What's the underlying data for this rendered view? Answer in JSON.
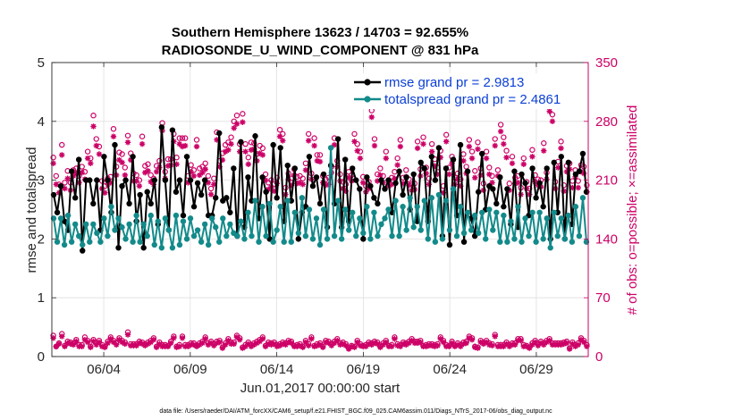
{
  "chart_data": {
    "type": "line",
    "title_line1": "Southern Hemisphere 13623 / 14703 = 92.655%",
    "title_line2": "RADIOSONDE_U_WIND_COMPONENT @ 831 hPa",
    "xlabel": "Jun.01,2017 00:00:00 start",
    "ylabel_left": "rmse and totalspread",
    "ylabel_right": "# of obs: o=possible; ×=assimilated",
    "footnote": "data file: /Users/raeder/DAI/ATM_forcXX/CAM6_setup/f.e21.FHIST_BGC.f09_025.CAM6assim.011/Diags_NTrS_2017-06/obs_diag_output.nc",
    "xlim": [
      1,
      32
    ],
    "ylim_left": [
      0,
      5
    ],
    "ylim_right": [
      0,
      350
    ],
    "x_tick_values": [
      4,
      9,
      14,
      19,
      24,
      29
    ],
    "x_tick_labels": [
      "06/04",
      "06/09",
      "06/14",
      "06/19",
      "06/24",
      "06/29"
    ],
    "y_left_ticks": [
      "0",
      "1",
      "2",
      "3",
      "4",
      "5"
    ],
    "y_right_ticks": [
      "0",
      "70",
      "140",
      "210",
      "280",
      "350"
    ],
    "colors": {
      "rmse": "#000000",
      "spread": "#138a8a",
      "obs": "#cc0066",
      "legend_text": "#0b3fd6"
    },
    "series": [
      {
        "name": "rmse grand pr = 2.9813",
        "key": "rmse",
        "values": [
          2.75,
          2.45,
          2.9,
          2.3,
          2.15,
          3.15,
          2.7,
          3.35,
          1.8,
          3.0,
          3.0,
          2.6,
          3.0,
          2.15,
          3.4,
          3.0,
          2.45,
          3.6,
          1.85,
          2.9,
          3.0,
          2.6,
          3.4,
          2.3,
          2.75,
          1.85,
          2.8,
          2.6,
          3.0,
          2.25,
          3.9,
          3.0,
          2.15,
          3.85,
          2.8,
          3.0,
          2.4,
          3.4,
          3.0,
          2.55,
          2.95,
          2.75,
          3.0,
          2.4,
          2.4,
          2.7,
          3.8,
          2.65,
          2.7,
          2.45,
          3.2,
          2.05,
          3.65,
          2.2,
          3.05,
          2.65,
          3.75,
          2.35,
          3.05,
          2.8,
          2.0,
          3.6,
          2.7,
          3.55,
          2.3,
          3.25,
          2.65,
          3.2,
          2.0,
          2.45,
          2.55,
          3.4,
          2.9,
          3.05,
          2.6,
          3.1,
          2.2,
          3.25,
          2.6,
          3.7,
          2.2,
          3.35,
          2.3,
          3.2,
          3.0,
          2.85,
          2.0,
          3.05,
          2.9,
          2.7,
          2.6,
          3.0,
          2.85,
          3.0,
          2.45,
          2.95,
          3.15,
          2.75,
          3.05,
          2.5,
          3.1,
          2.3,
          3.3,
          3.2,
          2.3,
          3.4,
          3.0,
          3.55,
          2.05,
          3.2,
          1.9,
          3.35,
          2.4,
          3.6,
          1.95,
          3.15,
          2.35,
          2.05,
          2.8,
          3.45,
          2.5,
          2.9,
          2.85,
          2.6,
          3.05,
          2.55,
          2.85,
          2.25,
          3.15,
          2.2,
          3.1,
          2.95,
          2.4,
          3.2,
          2.7,
          2.95,
          2.55,
          3.2,
          2.0,
          3.3,
          2.45,
          3.4,
          2.0,
          3.3,
          2.25,
          3.1,
          3.15,
          3.45,
          2.8
        ]
      },
      {
        "name": "totalspread grand pr = 2.4861",
        "key": "spread",
        "values": [
          2.35,
          1.95,
          2.35,
          1.9,
          2.4,
          1.95,
          2.25,
          2.05,
          1.9,
          2.25,
          1.95,
          2.25,
          2.1,
          1.95,
          2.35,
          2.05,
          2.55,
          2.15,
          2.35,
          2.2,
          2.0,
          2.25,
          1.95,
          2.4,
          1.95,
          2.25,
          2.05,
          2.4,
          1.9,
          2.3,
          1.85,
          2.35,
          2.15,
          1.85,
          2.4,
          1.9,
          2.3,
          2.0,
          2.35,
          2.05,
          2.15,
          1.95,
          2.25,
          1.9,
          2.35,
          2.2,
          1.95,
          2.35,
          2.05,
          2.25,
          2.1,
          2.05,
          2.3,
          2.0,
          2.45,
          2.05,
          2.65,
          1.95,
          2.55,
          2.05,
          2.6,
          1.95,
          2.15,
          2.55,
          1.95,
          2.65,
          1.95,
          2.45,
          2.1,
          2.7,
          2.05,
          2.5,
          2.0,
          2.35,
          1.9,
          2.5,
          2.0,
          3.55,
          2.05,
          2.65,
          2.0,
          2.5,
          2.15,
          2.45,
          2.05,
          2.35,
          2.1,
          2.55,
          2.0,
          2.45,
          2.05,
          2.25,
          2.35,
          2.5,
          2.05,
          2.65,
          2.05,
          2.55,
          2.15,
          2.7,
          2.2,
          2.55,
          2.15,
          2.65,
          2.0,
          2.7,
          1.95,
          2.75,
          2.0,
          2.65,
          2.15,
          2.85,
          2.05,
          2.55,
          2.1,
          2.45,
          2.15,
          2.4,
          2.1,
          2.45,
          2.0,
          2.5,
          2.15,
          2.45,
          1.95,
          2.4,
          1.95,
          2.3,
          2.0,
          2.55,
          1.95,
          2.35,
          2.05,
          2.45,
          1.95,
          2.45,
          2.0,
          2.35,
          1.85,
          2.45,
          2.05,
          2.35,
          2.0,
          2.4,
          1.95,
          2.55,
          2.05,
          2.7,
          1.95
        ]
      }
    ],
    "obs_possible_hi": [
      237,
      215,
      205,
      252,
      207,
      221,
      207,
      222,
      224,
      215,
      226,
      220,
      244,
      236,
      287,
      259,
      250,
      209,
      203,
      212,
      214,
      271,
      226,
      243,
      241,
      225,
      263,
      242,
      218,
      216,
      210,
      262,
      227,
      229,
      216,
      212,
      227,
      233,
      278,
      220,
      235,
      235,
      265,
      237,
      260,
      260,
      260,
      215,
      228,
      222,
      258,
      224,
      226,
      230,
      215,
      200,
      212,
      267,
      233,
      242,
      252,
      255,
      261,
      280,
      287,
      253,
      289,
      253,
      237,
      255,
      254,
      241,
      251,
      248,
      217,
      207,
      210,
      205,
      213,
      270,
      265,
      201,
      218,
      212,
      223,
      214,
      215,
      212,
      230,
      265,
      218,
      260,
      240,
      240,
      215,
      211,
      213,
      226,
      260,
      233,
      217,
      208,
      205,
      220,
      216,
      265,
      253,
      244,
      214,
      203,
      208,
      293,
      259,
      217,
      224,
      215,
      244,
      210,
      213,
      220,
      236,
      258,
      213,
      222,
      211,
      205,
      206,
      256,
      223,
      261,
      225,
      212,
      253,
      235,
      225,
      245,
      203,
      264,
      225,
      238,
      213,
      218,
      211,
      241,
      226,
      258,
      244,
      221,
      255,
      224,
      206,
      244,
      225,
      215,
      259,
      222,
      276,
      261,
      245,
      206,
      238,
      213,
      215,
      201,
      236,
      208,
      200,
      246,
      216,
      211,
      210,
      254,
      219,
      300,
      288,
      208,
      232,
      256,
      204,
      227,
      230,
      209,
      222,
      209,
      228,
      226,
      204
    ],
    "obs_assim_hi": [
      230,
      205,
      195,
      240,
      200,
      212,
      198,
      215,
      218,
      207,
      219,
      211,
      236,
      230,
      274,
      251,
      241,
      200,
      195,
      205,
      207,
      262,
      216,
      234,
      231,
      216,
      255,
      234,
      209,
      209,
      203,
      253,
      219,
      221,
      208,
      205,
      220,
      225,
      269,
      212,
      227,
      228,
      256,
      229,
      253,
      250,
      251,
      207,
      220,
      215,
      250,
      216,
      219,
      223,
      207,
      193,
      205,
      258,
      226,
      234,
      244,
      246,
      253,
      272,
      277,
      244,
      279,
      244,
      229,
      246,
      247,
      233,
      242,
      240,
      210,
      199,
      202,
      197,
      206,
      262,
      257,
      193,
      211,
      204,
      216,
      206,
      207,
      205,
      222,
      257,
      211,
      251,
      233,
      232,
      207,
      204,
      205,
      219,
      252,
      226,
      209,
      200,
      197,
      213,
      209,
      256,
      245,
      236,
      207,
      196,
      200,
      285,
      251,
      209,
      216,
      207,
      236,
      203,
      205,
      212,
      228,
      250,
      206,
      214,
      204,
      198,
      199,
      248,
      215,
      253,
      218,
      205,
      244,
      227,
      217,
      237,
      195,
      256,
      217,
      230,
      205,
      211,
      203,
      233,
      218,
      250,
      236,
      213,
      247,
      216,
      198,
      236,
      217,
      207,
      251,
      215,
      268,
      253,
      237,
      198,
      230,
      206,
      207,
      193,
      229,
      200,
      193,
      238,
      208,
      204,
      202,
      245,
      211,
      292,
      280,
      200,
      225,
      248,
      197,
      220,
      223,
      201,
      214,
      201,
      220,
      218,
      196
    ],
    "obs_possible_lo": [
      25,
      12,
      16,
      27,
      13,
      18,
      17,
      16,
      20,
      14,
      14,
      23,
      19,
      12,
      20,
      16,
      19,
      14,
      12,
      18,
      23,
      19,
      16,
      22,
      19,
      17,
      29,
      15,
      15,
      15,
      18,
      17,
      15,
      17,
      19,
      22,
      12,
      17,
      14,
      14,
      13,
      18,
      24,
      12,
      14,
      24,
      14,
      14,
      16,
      16,
      13,
      16,
      18,
      23,
      16,
      18,
      15,
      18,
      19,
      11,
      16,
      21,
      17,
      17,
      25,
      22,
      11,
      14,
      17,
      14,
      16,
      18,
      20,
      23,
      13,
      17,
      16,
      17,
      14,
      15,
      17,
      16,
      19,
      18,
      13,
      14,
      15,
      12,
      19,
      15,
      23,
      13,
      15,
      16,
      12,
      19,
      18,
      15,
      18,
      21,
      16,
      17,
      15,
      10,
      13,
      12,
      19,
      15,
      13,
      14,
      17,
      16,
      18,
      17,
      12,
      16,
      19,
      13,
      14,
      23,
      15,
      14,
      17,
      16,
      18,
      21,
      18,
      18,
      19,
      13,
      14,
      15,
      15,
      14,
      15,
      23,
      19,
      14,
      13,
      18,
      13,
      16,
      14,
      17,
      18,
      24,
      22,
      12,
      11,
      19,
      17,
      19,
      16,
      15,
      26,
      14,
      14,
      14,
      17,
      14,
      16,
      16,
      21,
      21,
      14,
      13,
      11,
      16,
      19,
      15,
      18,
      16,
      19,
      21,
      16,
      16,
      16,
      16,
      17,
      18,
      10,
      17,
      14,
      16,
      22,
      19,
      14
    ],
    "obs_assim_lo": [
      22,
      12,
      15,
      24,
      12,
      16,
      15,
      14,
      18,
      12,
      12,
      20,
      17,
      11,
      18,
      14,
      17,
      12,
      11,
      16,
      21,
      17,
      14,
      20,
      17,
      15,
      26,
      13,
      13,
      13,
      16,
      15,
      13,
      15,
      17,
      20,
      11,
      15,
      12,
      12,
      12,
      16,
      22,
      11,
      12,
      22,
      12,
      12,
      14,
      14,
      12,
      14,
      16,
      21,
      14,
      16,
      13,
      16,
      17,
      10,
      14,
      19,
      15,
      15,
      23,
      20,
      10,
      12,
      15,
      12,
      14,
      16,
      18,
      21,
      12,
      15,
      14,
      15,
      12,
      13,
      15,
      14,
      17,
      16,
      12,
      12,
      13,
      11,
      17,
      13,
      21,
      12,
      13,
      14,
      11,
      17,
      16,
      13,
      16,
      19,
      14,
      15,
      13,
      9,
      12,
      11,
      17,
      13,
      12,
      12,
      15,
      14,
      16,
      15,
      11,
      14,
      17,
      12,
      12,
      21,
      13,
      12,
      15,
      14,
      16,
      19,
      16,
      16,
      17,
      12,
      12,
      13,
      13,
      12,
      13,
      21,
      17,
      12,
      12,
      16,
      12,
      14,
      12,
      15,
      16,
      22,
      20,
      11,
      10,
      17,
      15,
      17,
      14,
      13,
      24,
      12,
      12,
      12,
      15,
      12,
      14,
      14,
      19,
      19,
      12,
      12,
      10,
      14,
      17,
      13,
      16,
      14,
      17,
      19,
      14,
      14,
      14,
      14,
      15,
      16,
      9,
      15,
      12,
      14,
      20,
      17,
      12
    ]
  }
}
